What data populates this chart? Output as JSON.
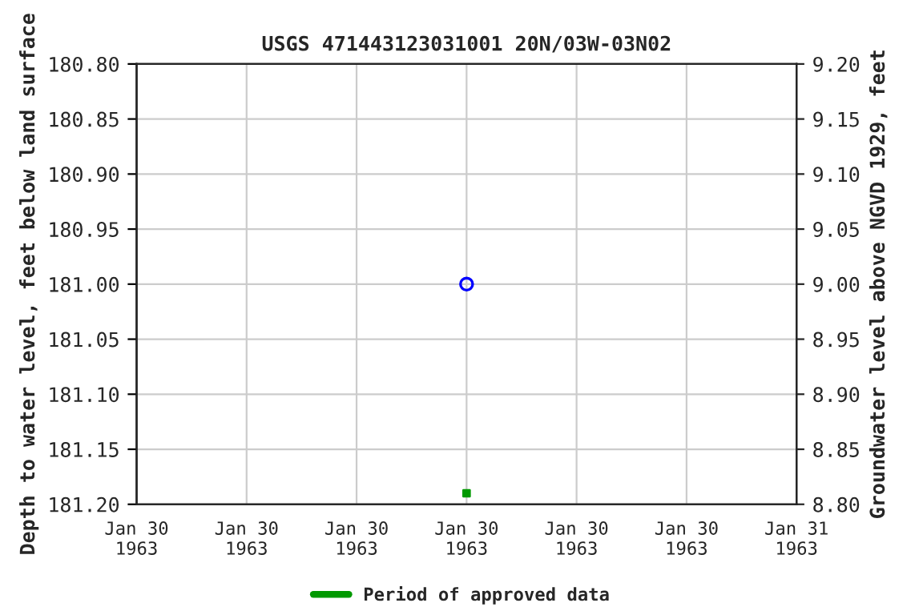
{
  "chart_data": {
    "type": "scatter",
    "title": "USGS 471443123031001 20N/03W-03N02",
    "ylabel": "Depth to water level, feet below land surface",
    "y2label": "Groundwater level above NGVD 1929, feet",
    "series": [
      {
        "color": "#0000ff",
        "marker": "circle",
        "x": [
          "1963-01-30T12:00"
        ],
        "values": [
          181.0
        ]
      },
      {
        "name": "Period of approved data",
        "color": "#009900",
        "marker": "square",
        "x": [
          "1963-01-30T12:00"
        ],
        "values": [
          181.19
        ]
      }
    ],
    "xlim": [
      "1963-01-30T00:00",
      "1963-01-31T00:00"
    ],
    "xticks": [
      {
        "value": "1963-01-30T00:00",
        "label": "Jan 30\n1963"
      },
      {
        "value": "1963-01-30T04:00",
        "label": "Jan 30\n1963"
      },
      {
        "value": "1963-01-30T08:00",
        "label": "Jan 30\n1963"
      },
      {
        "value": "1963-01-30T12:00",
        "label": "Jan 30\n1963"
      },
      {
        "value": "1963-01-30T16:00",
        "label": "Jan 30\n1963"
      },
      {
        "value": "1963-01-30T20:00",
        "label": "Jan 30\n1963"
      },
      {
        "value": "1963-01-31T00:00",
        "label": "Jan 31\n1963"
      }
    ],
    "ylim": [
      181.2,
      180.8
    ],
    "yticks": [
      {
        "value": 180.8,
        "label": "180.80"
      },
      {
        "value": 180.85,
        "label": "180.85"
      },
      {
        "value": 180.9,
        "label": "180.90"
      },
      {
        "value": 180.95,
        "label": "180.95"
      },
      {
        "value": 181.0,
        "label": "181.00"
      },
      {
        "value": 181.05,
        "label": "181.05"
      },
      {
        "value": 181.1,
        "label": "181.10"
      },
      {
        "value": 181.15,
        "label": "181.15"
      },
      {
        "value": 181.2,
        "label": "181.20"
      }
    ],
    "y2lim": [
      8.8,
      9.2
    ],
    "y2ticks": [
      {
        "value": 8.8,
        "label": "8.80"
      },
      {
        "value": 8.85,
        "label": "8.85"
      },
      {
        "value": 8.9,
        "label": "8.90"
      },
      {
        "value": 8.95,
        "label": "8.95"
      },
      {
        "value": 9.0,
        "label": "9.00"
      },
      {
        "value": 9.05,
        "label": "9.05"
      },
      {
        "value": 9.1,
        "label": "9.10"
      },
      {
        "value": 9.15,
        "label": "9.15"
      },
      {
        "value": 9.2,
        "label": "9.20"
      }
    ],
    "grid": true,
    "legend": "bottom"
  }
}
